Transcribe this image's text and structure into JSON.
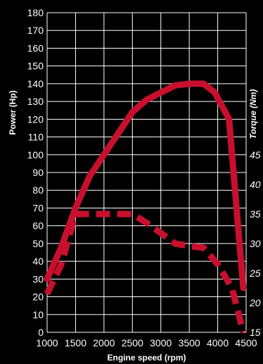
{
  "chart_data": {
    "type": "line",
    "xlabel": "Engine speed (rpm)",
    "ylabel": "Power (Hp)",
    "y2label": "Torque (Nm)",
    "xlim": [
      1000,
      4500
    ],
    "ylim": [
      0,
      180
    ],
    "x_ticks": [
      1000,
      1500,
      2000,
      2500,
      3000,
      3500,
      4000,
      4500
    ],
    "y_ticks": [
      0,
      10,
      20,
      30,
      40,
      50,
      60,
      70,
      80,
      90,
      100,
      110,
      120,
      130,
      140,
      150,
      160,
      170,
      180
    ],
    "y2_ticks": [
      15,
      20,
      25,
      30,
      35,
      40,
      45
    ],
    "y2_visible_range": [
      15,
      45
    ],
    "grid": true,
    "colors": {
      "background": "#000000",
      "grid": "#ffffff",
      "series": "#c8102e"
    },
    "series": [
      {
        "axis": "left",
        "style": "solid",
        "x": [
          1000,
          1250,
          1500,
          1750,
          2000,
          2250,
          2500,
          2750,
          3000,
          3250,
          3500,
          3750,
          3950,
          4200,
          4450
        ],
        "y": [
          30,
          48,
          70,
          88,
          100,
          112,
          124,
          131,
          135,
          139,
          140,
          140,
          135,
          120,
          25
        ]
      },
      {
        "axis": "right",
        "style": "dashed",
        "x": [
          1000,
          1250,
          1500,
          1750,
          2000,
          2250,
          2500,
          2750,
          3000,
          3250,
          3500,
          3750,
          4000,
          4250,
          4450
        ],
        "y": [
          21.5,
          26.5,
          35,
          35,
          35,
          35,
          35,
          33.5,
          31.8,
          30,
          29.6,
          29.3,
          26.5,
          22.5,
          15
        ]
      }
    ]
  }
}
